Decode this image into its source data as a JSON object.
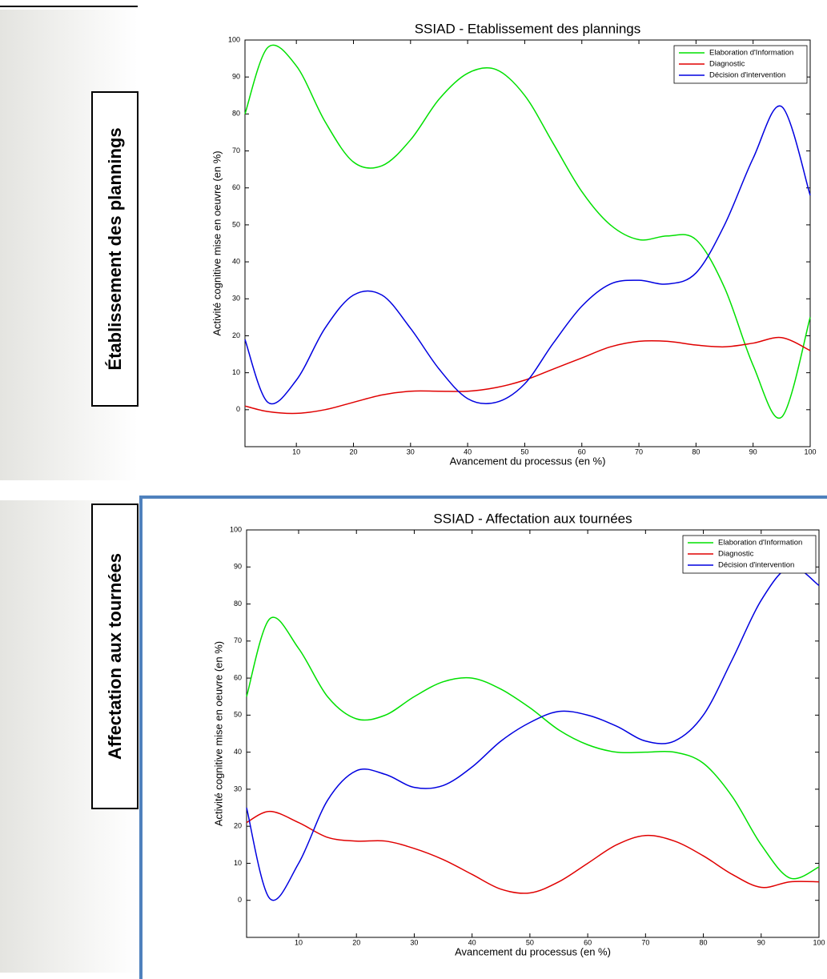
{
  "panel_labels": [
    "Établissement des plannings",
    "Affectation aux tournées"
  ],
  "chart_data": [
    {
      "type": "line",
      "title": "SSIAD - Etablissement des plannings",
      "x_label": "Avancement du processus (en %)",
      "y_label": "Activité cognitive mise en oeuvre (en %)",
      "x": [
        1,
        5,
        10,
        15,
        20,
        25,
        30,
        35,
        40,
        45,
        50,
        55,
        60,
        65,
        70,
        75,
        80,
        85,
        90,
        95,
        100
      ],
      "series": [
        {
          "name": "Elaboration d'Information",
          "color": "#00e000",
          "values": [
            80,
            98,
            93,
            78,
            67,
            66,
            73,
            84,
            91,
            92,
            85,
            72,
            59,
            50,
            46,
            47,
            46,
            33,
            12,
            -2,
            25
          ]
        },
        {
          "name": "Diagnostic",
          "color": "#e00000",
          "values": [
            1,
            -0.5,
            -1,
            0,
            2,
            4,
            5,
            5,
            5,
            6,
            8,
            11,
            14,
            17,
            18.5,
            18.5,
            17.5,
            17,
            18,
            19.5,
            16
          ]
        },
        {
          "name": "Décision d'intervention",
          "color": "#0000e0",
          "values": [
            19,
            2,
            8,
            22,
            31,
            31,
            22,
            11,
            3,
            2,
            7,
            18,
            28,
            34,
            35,
            34,
            37,
            50,
            68,
            82,
            58
          ]
        }
      ],
      "xlim": [
        1,
        100
      ],
      "xticks": [
        10,
        20,
        30,
        40,
        50,
        60,
        70,
        80,
        90,
        100
      ],
      "ylim": [
        -10,
        100
      ],
      "yticks": [
        0,
        10,
        20,
        30,
        40,
        50,
        60,
        70,
        80,
        90,
        100
      ],
      "legend": "upper right"
    },
    {
      "type": "line",
      "title": "SSIAD - Affectation aux tournées",
      "x_label": "Avancement du processus (en %)",
      "y_label": "Activité cognitive mise en oeuvre (en %)",
      "x": [
        1,
        5,
        10,
        15,
        20,
        25,
        30,
        35,
        40,
        45,
        50,
        55,
        60,
        65,
        70,
        75,
        80,
        85,
        90,
        95,
        100
      ],
      "series": [
        {
          "name": "Elaboration d'Information",
          "color": "#00e000",
          "values": [
            55,
            76,
            68,
            55,
            49,
            50,
            55,
            59,
            60,
            57,
            52,
            46,
            42,
            40,
            40,
            40,
            37,
            28,
            15,
            6,
            9
          ]
        },
        {
          "name": "Diagnostic",
          "color": "#e00000",
          "values": [
            21,
            24,
            21,
            17,
            16,
            16,
            14,
            11,
            7,
            3,
            2,
            5,
            10,
            15,
            17.5,
            16,
            12,
            7,
            3.5,
            5,
            5
          ]
        },
        {
          "name": "Décision d'intervention",
          "color": "#0000e0",
          "values": [
            25,
            0.5,
            10,
            27,
            35,
            34,
            30.5,
            31,
            36,
            43,
            48,
            51,
            50,
            47,
            43,
            43,
            50,
            65,
            81,
            90,
            85
          ]
        }
      ],
      "xlim": [
        1,
        100
      ],
      "xticks": [
        10,
        20,
        30,
        40,
        50,
        60,
        70,
        80,
        90,
        100
      ],
      "ylim": [
        -10,
        100
      ],
      "yticks": [
        0,
        10,
        20,
        30,
        40,
        50,
        60,
        70,
        80,
        90,
        100
      ],
      "legend": "upper right"
    }
  ]
}
